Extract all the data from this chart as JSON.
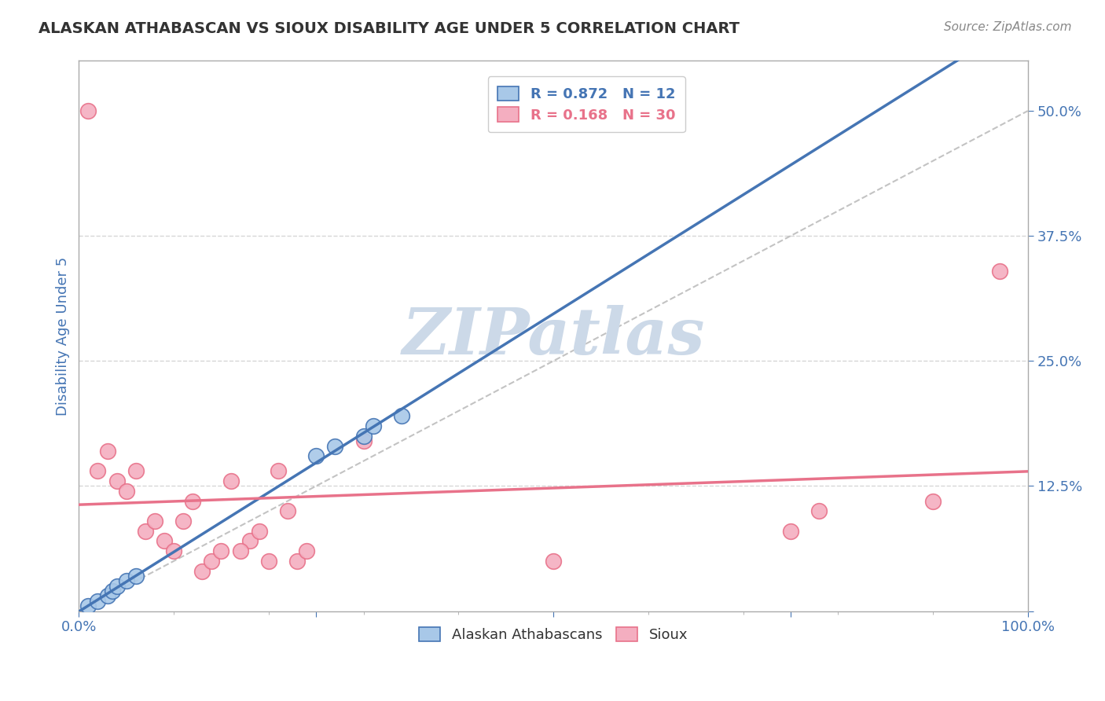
{
  "title": "ALASKAN ATHABASCAN VS SIOUX DISABILITY AGE UNDER 5 CORRELATION CHART",
  "source": "Source: ZipAtlas.com",
  "ylabel": "Disability Age Under 5",
  "xlim": [
    0,
    1.0
  ],
  "ylim": [
    0,
    0.55
  ],
  "blue_R": 0.872,
  "blue_N": 12,
  "pink_R": 0.168,
  "pink_N": 30,
  "blue_points_x": [
    0.01,
    0.02,
    0.03,
    0.035,
    0.04,
    0.05,
    0.06,
    0.25,
    0.27,
    0.3,
    0.31,
    0.34
  ],
  "blue_points_y": [
    0.005,
    0.01,
    0.015,
    0.02,
    0.025,
    0.03,
    0.035,
    0.155,
    0.165,
    0.175,
    0.185,
    0.195
  ],
  "pink_points_x": [
    0.01,
    0.02,
    0.03,
    0.04,
    0.05,
    0.06,
    0.07,
    0.08,
    0.09,
    0.1,
    0.11,
    0.12,
    0.13,
    0.14,
    0.15,
    0.16,
    0.18,
    0.19,
    0.2,
    0.21,
    0.22,
    0.23,
    0.3,
    0.5,
    0.75,
    0.78,
    0.9,
    0.97,
    0.17,
    0.24
  ],
  "pink_points_y": [
    0.5,
    0.14,
    0.16,
    0.13,
    0.12,
    0.14,
    0.08,
    0.09,
    0.07,
    0.06,
    0.09,
    0.11,
    0.04,
    0.05,
    0.06,
    0.13,
    0.07,
    0.08,
    0.05,
    0.14,
    0.1,
    0.05,
    0.17,
    0.05,
    0.08,
    0.1,
    0.11,
    0.34,
    0.06,
    0.06
  ],
  "blue_line_color": "#4575b4",
  "pink_line_color": "#e8728a",
  "blue_scatter_facecolor": "#a8c8e8",
  "pink_scatter_facecolor": "#f4aec0",
  "diagonal_color": "#aaaaaa",
  "watermark_color": "#ccd9e8",
  "grid_color": "#cccccc",
  "title_color": "#333333",
  "axis_label_color": "#4575b4",
  "background_color": "#ffffff",
  "spine_color": "#aaaaaa"
}
